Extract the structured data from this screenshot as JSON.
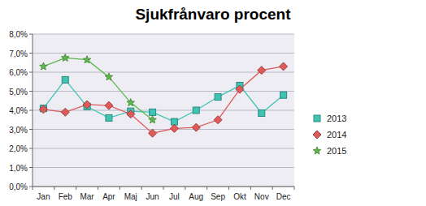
{
  "chart_data": {
    "type": "line",
    "title": "Sjukfrånvaro procent",
    "categories": [
      "Jan",
      "Feb",
      "Mar",
      "Apr",
      "Maj",
      "Jun",
      "Jul",
      "Aug",
      "Sep",
      "Okt",
      "Nov",
      "Dec"
    ],
    "series": [
      {
        "name": "2013",
        "color": "#3fc4b4",
        "marker": "square",
        "values": [
          4.1,
          5.6,
          4.2,
          3.6,
          3.95,
          3.9,
          3.4,
          4.0,
          4.7,
          5.3,
          3.85,
          4.8
        ]
      },
      {
        "name": "2014",
        "color": "#e05a5a",
        "marker": "diamond",
        "values": [
          4.05,
          3.9,
          4.3,
          4.25,
          3.8,
          2.8,
          3.05,
          3.1,
          3.5,
          5.1,
          6.1,
          6.3
        ]
      },
      {
        "name": "2015",
        "color": "#5cb84c",
        "marker": "star",
        "values": [
          6.3,
          6.75,
          6.65,
          5.75,
          4.4,
          3.5,
          null,
          null,
          null,
          null,
          null,
          null
        ]
      }
    ],
    "ylim": [
      0,
      8
    ],
    "yticks": [
      {
        "value": 0,
        "label": "0,0%"
      },
      {
        "value": 1,
        "label": "1,0%"
      },
      {
        "value": 2,
        "label": "2,0%"
      },
      {
        "value": 3,
        "label": "3,0%"
      },
      {
        "value": 4,
        "label": "4,0%"
      },
      {
        "value": 5,
        "label": "5,0%"
      },
      {
        "value": 6,
        "label": "6,0%"
      },
      {
        "value": 7,
        "label": "7,0%"
      },
      {
        "value": 8,
        "label": "8,0%"
      }
    ],
    "grid": true,
    "legend": "right"
  }
}
